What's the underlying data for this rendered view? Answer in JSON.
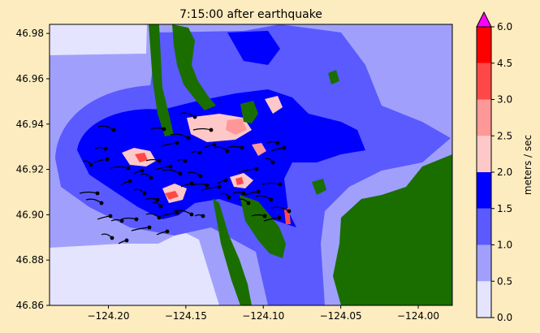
{
  "chart_data": {
    "type": "heatmap",
    "title": "7:15:00 after earthquake",
    "xlabel": "",
    "ylabel": "",
    "xlim": [
      -124.238,
      -123.978
    ],
    "ylim": [
      46.86,
      46.984
    ],
    "x_ticks": [
      -124.2,
      -124.15,
      -124.1,
      -124.05,
      -124.0
    ],
    "x_tick_labels": [
      "−124.20",
      "−124.15",
      "−124.10",
      "−124.05",
      "−124.00"
    ],
    "y_ticks": [
      46.86,
      46.88,
      46.9,
      46.92,
      46.94,
      46.96,
      46.98
    ],
    "y_tick_labels": [
      "46.86",
      "46.88",
      "46.90",
      "46.92",
      "46.94",
      "46.96",
      "46.98"
    ],
    "colorbar": {
      "label": "meters / sec",
      "levels": [
        0.0,
        0.5,
        1.0,
        1.5,
        2.0,
        2.5,
        3.0,
        4.5,
        6.0
      ],
      "level_labels": [
        "0.0",
        "0.5",
        "1.0",
        "1.5",
        "2.0",
        "2.5",
        "3.0",
        "4.5",
        "6.0"
      ],
      "colors": [
        "#e4e4fe",
        "#a0a0fc",
        "#5a5afe",
        "#0000fe",
        "#fec8c8",
        "#fe9898",
        "#fe4848",
        "#fe0000"
      ],
      "extend_color": "#ff00ff",
      "extend": "max"
    },
    "land_color": "#1a6e00",
    "grid": false
  }
}
